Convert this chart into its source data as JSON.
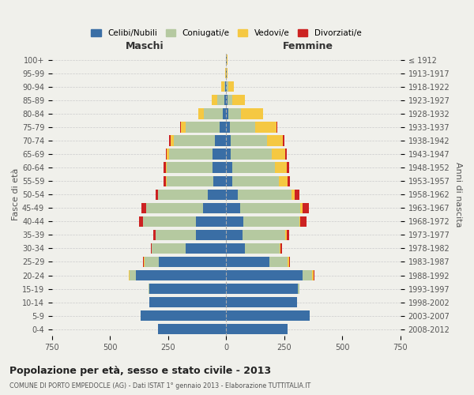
{
  "age_groups": [
    "0-4",
    "5-9",
    "10-14",
    "15-19",
    "20-24",
    "25-29",
    "30-34",
    "35-39",
    "40-44",
    "45-49",
    "50-54",
    "55-59",
    "60-64",
    "65-69",
    "70-74",
    "75-79",
    "80-84",
    "85-89",
    "90-94",
    "95-99",
    "100+"
  ],
  "birth_years": [
    "2008-2012",
    "2003-2007",
    "1998-2002",
    "1993-1997",
    "1988-1992",
    "1983-1987",
    "1978-1982",
    "1973-1977",
    "1968-1972",
    "1963-1967",
    "1958-1962",
    "1953-1957",
    "1948-1952",
    "1943-1947",
    "1938-1942",
    "1933-1937",
    "1928-1932",
    "1923-1927",
    "1918-1922",
    "1913-1917",
    "≤ 1912"
  ],
  "colors": {
    "celibi": "#3a6ea5",
    "coniugati": "#b5c9a0",
    "vedovi": "#f5c842",
    "divorziati": "#cc2222"
  },
  "maschi": {
    "celibi": [
      295,
      370,
      330,
      330,
      390,
      290,
      175,
      130,
      130,
      100,
      80,
      55,
      60,
      60,
      50,
      30,
      15,
      8,
      3,
      2,
      2
    ],
    "coniugati": [
      0,
      0,
      0,
      5,
      25,
      60,
      145,
      175,
      230,
      245,
      215,
      200,
      195,
      185,
      175,
      145,
      80,
      30,
      5,
      0,
      0
    ],
    "vedovi": [
      0,
      0,
      0,
      0,
      5,
      5,
      0,
      0,
      0,
      0,
      0,
      5,
      5,
      10,
      15,
      20,
      25,
      25,
      12,
      2,
      0
    ],
    "divorziati": [
      0,
      0,
      0,
      0,
      0,
      5,
      5,
      10,
      15,
      20,
      10,
      10,
      10,
      5,
      5,
      5,
      0,
      0,
      0,
      0,
      0
    ]
  },
  "femmine": {
    "celibi": [
      265,
      360,
      305,
      310,
      330,
      185,
      80,
      70,
      75,
      60,
      50,
      25,
      25,
      20,
      20,
      15,
      10,
      5,
      3,
      2,
      2
    ],
    "coniugati": [
      0,
      0,
      0,
      5,
      40,
      80,
      150,
      185,
      240,
      260,
      230,
      200,
      185,
      175,
      155,
      110,
      55,
      20,
      5,
      0,
      0
    ],
    "vedovi": [
      0,
      0,
      0,
      0,
      5,
      5,
      5,
      5,
      5,
      10,
      15,
      40,
      50,
      60,
      70,
      90,
      95,
      55,
      25,
      5,
      2
    ],
    "divorziati": [
      0,
      0,
      0,
      0,
      5,
      5,
      5,
      10,
      25,
      25,
      20,
      10,
      10,
      5,
      5,
      5,
      0,
      0,
      0,
      0,
      0
    ]
  },
  "title": "Popolazione per età, sesso e stato civile - 2013",
  "subtitle": "COMUNE DI PORTO EMPEDOCLE (AG) - Dati ISTAT 1° gennaio 2013 - Elaborazione TUTTITALIA.IT",
  "xlabel_left": "Maschi",
  "xlabel_right": "Femmine",
  "ylabel_left": "Fasce di età",
  "ylabel_right": "Anni di nascita",
  "xlim": 750,
  "legend_labels": [
    "Celibi/Nubili",
    "Coniugati/e",
    "Vedovi/e",
    "Divorziati/e"
  ],
  "background_color": "#f0f0eb"
}
